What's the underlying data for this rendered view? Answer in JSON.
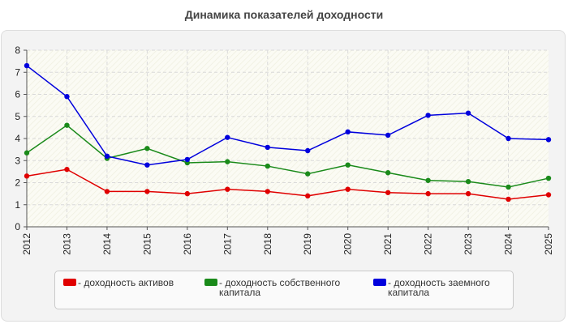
{
  "chart_data": {
    "type": "line",
    "title": "Динамика показателей доходности",
    "x": [
      "2012",
      "2013",
      "2014",
      "2015",
      "2016",
      "2017",
      "2018",
      "2019",
      "2020",
      "2021",
      "2022",
      "2023",
      "2024",
      "2025"
    ],
    "ylim": [
      0,
      8
    ],
    "yticks": [
      "0",
      "1",
      "2",
      "3",
      "4",
      "5",
      "6",
      "7",
      "8"
    ],
    "grid": true,
    "legend_position": "bottom",
    "series": [
      {
        "name": "- доходность активов",
        "color": "#e00000",
        "values": [
          2.3,
          2.6,
          1.6,
          1.6,
          1.5,
          1.7,
          1.6,
          1.4,
          1.7,
          1.55,
          1.5,
          1.5,
          1.25,
          1.45
        ]
      },
      {
        "name": "- доходность собственного капитала",
        "color": "#1a8a1a",
        "values": [
          3.35,
          4.6,
          3.1,
          3.55,
          2.9,
          2.95,
          2.75,
          2.4,
          2.8,
          2.45,
          2.1,
          2.05,
          1.8,
          2.2
        ]
      },
      {
        "name": "- доходность заемного капитала",
        "color": "#0000dd",
        "values": [
          7.3,
          5.9,
          3.2,
          2.8,
          3.05,
          4.05,
          3.6,
          3.45,
          4.3,
          4.15,
          5.05,
          5.15,
          4.0,
          3.95
        ]
      }
    ]
  }
}
